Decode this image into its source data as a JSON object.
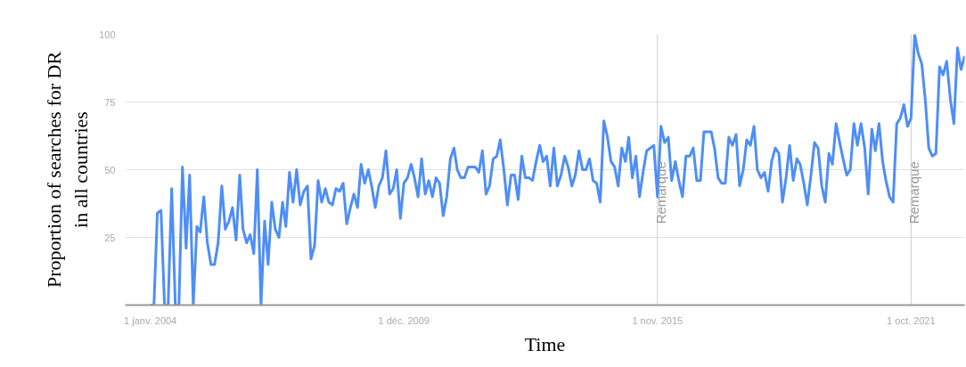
{
  "chart_data": {
    "type": "line",
    "xlabel": "Time",
    "ylabel": "Proportion of searches for DR in all countries",
    "x": [
      "2004-01",
      "2004-02",
      "2004-03",
      "2004-04",
      "2004-05",
      "2004-06",
      "2004-07",
      "2004-08",
      "2004-09",
      "2004-10",
      "2004-11",
      "2004-12",
      "2005-01",
      "2005-02",
      "2005-03",
      "2005-04",
      "2005-05",
      "2005-06",
      "2005-07",
      "2005-08",
      "2005-09",
      "2005-10",
      "2005-11",
      "2005-12",
      "2006-01",
      "2006-02",
      "2006-03",
      "2006-04",
      "2006-05",
      "2006-06",
      "2006-07",
      "2006-08",
      "2006-09",
      "2006-10",
      "2006-11",
      "2006-12",
      "2007-01",
      "2007-02",
      "2007-03",
      "2007-04",
      "2007-05",
      "2007-06",
      "2007-07",
      "2007-08",
      "2007-09",
      "2007-10",
      "2007-11",
      "2007-12",
      "2008-01",
      "2008-02",
      "2008-03",
      "2008-04",
      "2008-05",
      "2008-06",
      "2008-07",
      "2008-08",
      "2008-09",
      "2008-10",
      "2008-11",
      "2008-12",
      "2009-01",
      "2009-02",
      "2009-03",
      "2009-04",
      "2009-05",
      "2009-06",
      "2009-07",
      "2009-08",
      "2009-09",
      "2009-10",
      "2009-11",
      "2009-12",
      "2010-01",
      "2010-02",
      "2010-03",
      "2010-04",
      "2010-05",
      "2010-06",
      "2010-07",
      "2010-08",
      "2010-09",
      "2010-10",
      "2010-11",
      "2010-12",
      "2011-01",
      "2011-02",
      "2011-03",
      "2011-04",
      "2011-05",
      "2011-06",
      "2011-07",
      "2011-08",
      "2011-09",
      "2011-10",
      "2011-11",
      "2011-12",
      "2012-01",
      "2012-02",
      "2012-03",
      "2012-04",
      "2012-05",
      "2012-06",
      "2012-07",
      "2012-08",
      "2012-09",
      "2012-10",
      "2012-11",
      "2012-12",
      "2013-01",
      "2013-02",
      "2013-03",
      "2013-04",
      "2013-05",
      "2013-06",
      "2013-07",
      "2013-08",
      "2013-09",
      "2013-10",
      "2013-11",
      "2013-12",
      "2014-01",
      "2014-02",
      "2014-03",
      "2014-04",
      "2014-05",
      "2014-06",
      "2014-07",
      "2014-08",
      "2014-09",
      "2014-10",
      "2014-11",
      "2014-12",
      "2015-01",
      "2015-02",
      "2015-03",
      "2015-04",
      "2015-05",
      "2015-06",
      "2015-07",
      "2015-08",
      "2015-09",
      "2015-10",
      "2015-11",
      "2015-12",
      "2016-01",
      "2016-02",
      "2016-03",
      "2016-04",
      "2016-05",
      "2016-06",
      "2016-07",
      "2016-08",
      "2016-09",
      "2016-10",
      "2016-11",
      "2016-12",
      "2017-01",
      "2017-02",
      "2017-03",
      "2017-04",
      "2017-05",
      "2017-06",
      "2017-07",
      "2017-08",
      "2017-09",
      "2017-10",
      "2017-11",
      "2017-12",
      "2018-01",
      "2018-02",
      "2018-03",
      "2018-04",
      "2018-05",
      "2018-06",
      "2018-07",
      "2018-08",
      "2018-09",
      "2018-10",
      "2018-11",
      "2018-12",
      "2019-01",
      "2019-02",
      "2019-03",
      "2019-04",
      "2019-05",
      "2019-06",
      "2019-07",
      "2019-08",
      "2019-09",
      "2019-10",
      "2019-11",
      "2019-12",
      "2020-01",
      "2020-02",
      "2020-03",
      "2020-04",
      "2020-05",
      "2020-06",
      "2020-07",
      "2020-08",
      "2020-09",
      "2020-10",
      "2020-11",
      "2020-12",
      "2021-01",
      "2021-02",
      "2021-03",
      "2021-04",
      "2021-05",
      "2021-06",
      "2021-07",
      "2021-08",
      "2021-09",
      "2021-10",
      "2021-11",
      "2021-12",
      "2022-01",
      "2022-02",
      "2022-03",
      "2022-04",
      "2022-05",
      "2022-06",
      "2022-07",
      "2022-08",
      "2022-09",
      "2022-10",
      "2022-11",
      "2022-12",
      "2023-01"
    ],
    "series": [
      {
        "color": "#4e8ef7",
        "values": [
          0,
          0,
          34,
          35,
          0,
          0,
          43,
          0,
          0,
          51,
          21,
          48,
          0,
          29,
          27,
          40,
          23,
          15,
          15,
          23,
          44,
          28,
          31,
          36,
          24,
          48,
          28,
          23,
          26,
          19,
          50,
          0,
          31,
          15,
          38,
          28,
          25,
          38,
          29,
          49,
          38,
          50,
          37,
          42,
          44,
          17,
          22,
          46,
          38,
          43,
          38,
          37,
          43,
          42,
          45,
          30,
          36,
          41,
          36,
          52,
          45,
          50,
          44,
          36,
          44,
          47,
          57,
          41,
          43,
          50,
          32,
          45,
          47,
          52,
          47,
          40,
          54,
          41,
          46,
          40,
          47,
          45,
          33,
          40,
          54,
          58,
          50,
          47,
          47,
          51,
          51,
          51,
          49,
          57,
          41,
          44,
          54,
          55,
          61,
          50,
          37,
          48,
          48,
          39,
          55,
          47,
          47,
          46,
          53,
          59,
          53,
          55,
          44,
          58,
          44,
          48,
          55,
          51,
          44,
          48,
          57,
          50,
          50,
          54,
          46,
          45,
          38,
          68,
          62,
          53,
          51,
          44,
          58,
          53,
          62,
          47,
          55,
          40,
          49,
          57,
          58,
          59,
          40,
          66,
          60,
          62,
          46,
          53,
          46,
          40,
          55,
          55,
          58,
          46,
          46,
          64,
          64,
          64,
          58,
          47,
          45,
          45,
          62,
          59,
          63,
          44,
          50,
          61,
          59,
          66,
          50,
          47,
          49,
          42,
          53,
          58,
          56,
          38,
          47,
          59,
          46,
          54,
          52,
          45,
          37,
          48,
          60,
          58,
          44,
          38,
          56,
          52,
          67,
          60,
          54,
          48,
          50,
          67,
          59,
          67,
          58,
          41,
          65,
          57,
          67,
          53,
          46,
          40,
          38,
          67,
          69,
          74,
          66,
          69,
          100,
          93,
          89,
          75,
          58,
          55,
          56,
          88,
          85,
          90,
          76,
          67,
          95,
          87,
          92
        ]
      }
    ],
    "xlim": [
      "2003-06",
      "2023-01"
    ],
    "xticks": [
      {
        "value": "2004-01-01",
        "label": "1 janv. 2004"
      },
      {
        "value": "2009-12-01",
        "label": "1 déc. 2009"
      },
      {
        "value": "2015-11-01",
        "label": "1 nov. 2015"
      },
      {
        "value": "2021-10-01",
        "label": "1 oct. 2021"
      }
    ],
    "ylim": [
      0,
      100
    ],
    "yticks": [
      25,
      50,
      75,
      100
    ],
    "grid": "y",
    "line_style": "solid",
    "ref_lines": [
      {
        "axis": "x",
        "value": "2015-11-01",
        "label": "Remarque",
        "color": "#cccccc"
      },
      {
        "axis": "x",
        "value": "2021-10-01",
        "label": "Remarque",
        "color": "#cccccc"
      }
    ]
  }
}
